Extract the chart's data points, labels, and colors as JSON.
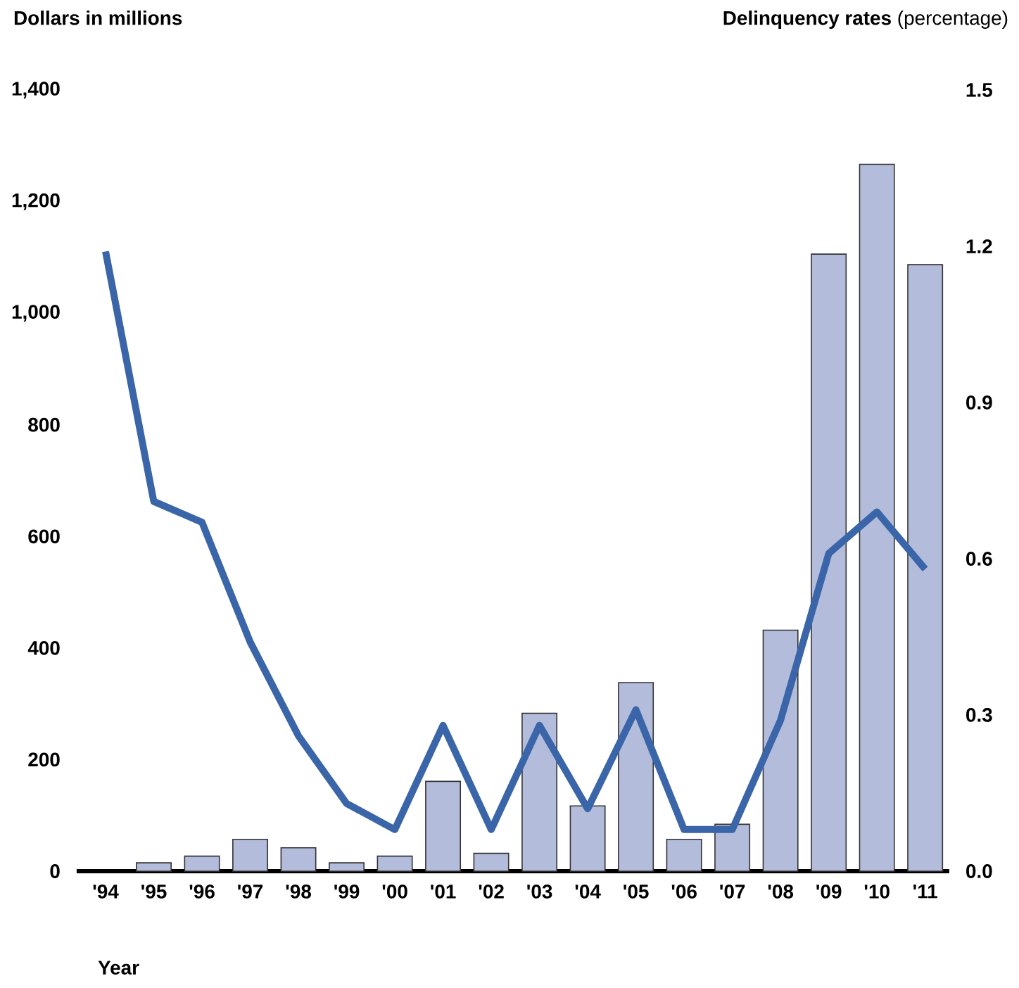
{
  "chart_data": {
    "type": "bar",
    "ylabel": "Dollars in millions",
    "y2label": "**Delinquency rates** (percentage)",
    "xlabel": "Year",
    "categories": [
      "'94",
      "'95",
      "'96",
      "'97",
      "'98",
      "'99",
      "'00",
      "'01",
      "'02",
      "'03",
      "'04",
      "'05",
      "'06",
      "'07",
      "'08",
      "'09",
      "'10",
      "'11"
    ],
    "series": [
      {
        "color": "#b4bcdc",
        "values": [
          null,
          15,
          27,
          57,
          42,
          15,
          27,
          161,
          32,
          283,
          117,
          338,
          57,
          84,
          432,
          1106,
          1267,
          1087
        ]
      },
      {
        "type": "line",
        "axis": "y2",
        "color": "#3a65a8",
        "values": [
          1.19,
          0.71,
          0.67,
          0.44,
          0.26,
          0.13,
          0.08,
          0.28,
          0.08,
          0.28,
          0.12,
          0.31,
          0.08,
          0.08,
          0.29,
          0.61,
          0.69,
          0.58
        ]
      }
    ],
    "ylim": [
      0,
      1400
    ],
    "yticks": [
      0,
      200,
      400,
      600,
      800,
      {
        "value": 1000,
        "label": "1,000"
      },
      {
        "value": 1200,
        "label": "1,200"
      },
      {
        "value": 1400,
        "label": "1,400"
      }
    ],
    "y2lim": [
      0,
      1.5
    ],
    "y2ticks": [
      {
        "value": 0,
        "label": "0.0"
      },
      0.3,
      0.6,
      0.9,
      1.2,
      1.5
    ]
  }
}
